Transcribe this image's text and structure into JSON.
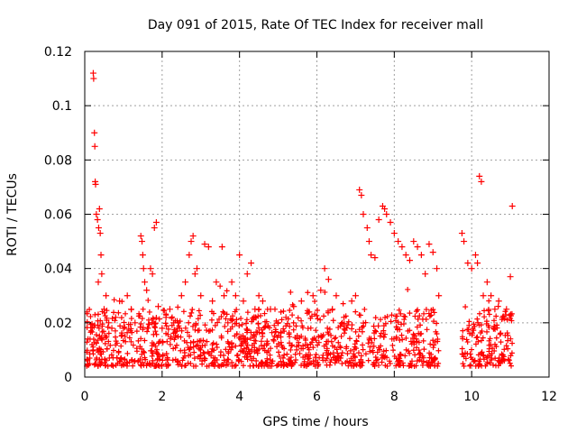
{
  "chart_data": {
    "type": "scatter",
    "title": "Day 091 of 2015, Rate Of TEC Index for receiver mall",
    "xlabel": "GPS time / hours",
    "ylabel": "ROTI / TECUs",
    "xlim": [
      0,
      12
    ],
    "ylim": [
      0,
      0.12
    ],
    "grid": true,
    "x_ticks": [
      0,
      2,
      4,
      6,
      8,
      10,
      12
    ],
    "x_tick_labels": [
      "0",
      "2",
      "4",
      "6",
      "8",
      "10",
      "12"
    ],
    "y_ticks": [
      0,
      0.02,
      0.04,
      0.06,
      0.08,
      0.1,
      0.12
    ],
    "y_tick_labels": [
      "0",
      "0.02",
      "0.04",
      "0.06",
      "0.08",
      "0.1",
      "0.12"
    ],
    "marker": "+",
    "marker_color": "#ff0000",
    "series": [
      {
        "name": "ROTI",
        "x": [
          0.22,
          0.23,
          0.25,
          0.26,
          0.27,
          0.28,
          0.3,
          0.33,
          0.36,
          0.38,
          0.4,
          0.42,
          0.35,
          0.44,
          0.5,
          0.55,
          0.62,
          0.7,
          0.8,
          0.9,
          1.0,
          1.1,
          1.2,
          1.3,
          1.45,
          1.48,
          1.5,
          1.52,
          1.55,
          1.6,
          1.7,
          1.75,
          1.8,
          1.85,
          1.9,
          2.0,
          2.1,
          2.2,
          2.3,
          2.4,
          2.5,
          2.6,
          2.7,
          2.75,
          2.8,
          2.85,
          2.9,
          3.0,
          3.1,
          3.2,
          3.3,
          3.4,
          3.55,
          3.6,
          3.7,
          3.8,
          3.9,
          4.0,
          4.1,
          4.2,
          4.3,
          4.4,
          4.5,
          4.6,
          4.8,
          5.0,
          5.2,
          5.4,
          5.6,
          5.8,
          5.9,
          6.1,
          6.2,
          6.3,
          6.4,
          6.5,
          6.7,
          6.9,
          7.0,
          7.1,
          7.15,
          7.2,
          7.3,
          7.35,
          7.4,
          7.5,
          7.6,
          7.7,
          7.75,
          7.8,
          7.9,
          8.0,
          8.1,
          8.2,
          8.3,
          8.4,
          8.5,
          8.6,
          8.7,
          8.8,
          8.9,
          9.0,
          9.1,
          9.15,
          9.75,
          9.8,
          9.9,
          10.0,
          10.1,
          10.15,
          10.2,
          10.25,
          10.3,
          10.4,
          10.5,
          10.6,
          10.7,
          10.8,
          10.9,
          11.0,
          11.05
        ],
        "y": [
          0.112,
          0.11,
          0.09,
          0.085,
          0.072,
          0.071,
          0.06,
          0.058,
          0.055,
          0.062,
          0.053,
          0.045,
          0.035,
          0.038,
          0.025,
          0.03,
          0.02,
          0.018,
          0.022,
          0.028,
          0.018,
          0.03,
          0.025,
          0.02,
          0.052,
          0.05,
          0.045,
          0.04,
          0.035,
          0.032,
          0.04,
          0.038,
          0.055,
          0.057,
          0.026,
          0.018,
          0.022,
          0.025,
          0.02,
          0.018,
          0.03,
          0.035,
          0.045,
          0.05,
          0.052,
          0.038,
          0.04,
          0.03,
          0.049,
          0.048,
          0.028,
          0.035,
          0.048,
          0.03,
          0.02,
          0.035,
          0.03,
          0.045,
          0.028,
          0.038,
          0.042,
          0.025,
          0.03,
          0.028,
          0.025,
          0.02,
          0.022,
          0.026,
          0.028,
          0.024,
          0.03,
          0.032,
          0.04,
          0.036,
          0.025,
          0.03,
          0.022,
          0.028,
          0.03,
          0.069,
          0.067,
          0.06,
          0.055,
          0.05,
          0.045,
          0.044,
          0.058,
          0.063,
          0.062,
          0.06,
          0.057,
          0.053,
          0.05,
          0.048,
          0.045,
          0.043,
          0.05,
          0.048,
          0.045,
          0.038,
          0.049,
          0.046,
          0.04,
          0.03,
          0.053,
          0.05,
          0.042,
          0.04,
          0.045,
          0.042,
          0.074,
          0.072,
          0.03,
          0.035,
          0.03,
          0.025,
          0.028,
          0.022,
          0.025,
          0.037,
          0.063
        ]
      }
    ],
    "background_band": {
      "note": "dense cloud of ROTI values between 0.004 and 0.025 TECUs across 0.05–9.15 h and 9.75–11.05 h",
      "segments": [
        [
          0.05,
          9.15
        ],
        [
          9.75,
          11.05
        ]
      ],
      "y_range": [
        0.004,
        0.025
      ]
    }
  }
}
